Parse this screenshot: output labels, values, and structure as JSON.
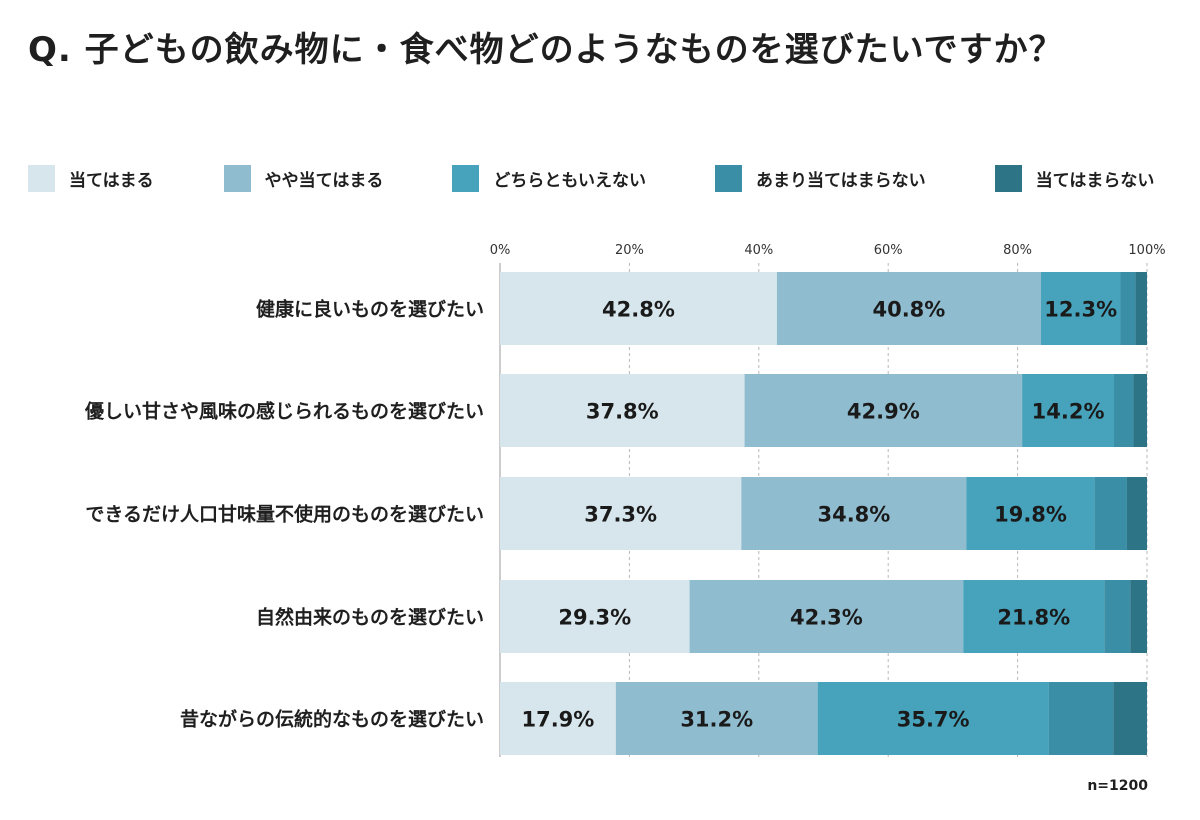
{
  "title": "Q. 子どもの飲み物に・食べ物どのようなものを選びたいですか？",
  "sample_note": "n=1200",
  "chart_data": {
    "type": "bar",
    "orientation": "horizontal",
    "stacked": true,
    "title": "Q. 子どもの飲み物に・食べ物どのようなものを選びたいですか？",
    "categories": [
      "健康に良いものを選びたい",
      "優しい甘さや風味の感じられるものを選びたい",
      "できるだけ人口甘味量不使用のものを選びたい",
      "自然由来のものを選びたい",
      "昔ながらの伝統的なものを選びたい"
    ],
    "series": [
      {
        "name": "当てはまる",
        "color": "#d7e6ec",
        "values": [
          42.8,
          37.8,
          37.3,
          29.3,
          17.9
        ],
        "labels": [
          "42.8%",
          "37.8%",
          "37.3%",
          "29.3%",
          "17.9%"
        ]
      },
      {
        "name": "やや当てはまる",
        "color": "#8fbccf",
        "values": [
          40.8,
          42.9,
          34.8,
          42.3,
          31.2
        ],
        "labels": [
          "40.8%",
          "42.9%",
          "34.8%",
          "42.3%",
          "31.2%"
        ]
      },
      {
        "name": "どちらともいえない",
        "color": "#46a3bb",
        "values": [
          12.3,
          14.2,
          19.8,
          21.8,
          35.7
        ],
        "labels": [
          "12.3%",
          "14.2%",
          "19.8%",
          "21.8%",
          "35.7%"
        ]
      },
      {
        "name": "あまり当てはまらない",
        "color": "#3a8ea5",
        "values": [
          2.3,
          3.0,
          5.0,
          4.0,
          10.0
        ],
        "labels": [
          "",
          "",
          "",
          "",
          ""
        ]
      },
      {
        "name": "当てはまらない",
        "color": "#2e7487",
        "values": [
          1.8,
          2.1,
          3.1,
          2.6,
          5.2
        ],
        "labels": [
          "",
          "",
          "",
          "",
          ""
        ]
      }
    ],
    "xlim": [
      0,
      100
    ],
    "xticks": [
      "0%",
      "20%",
      "40%",
      "60%",
      "80%",
      "100%"
    ],
    "tick_values": [
      0,
      20,
      40,
      60,
      80,
      100
    ],
    "legend_position": "top",
    "grid": true
  }
}
